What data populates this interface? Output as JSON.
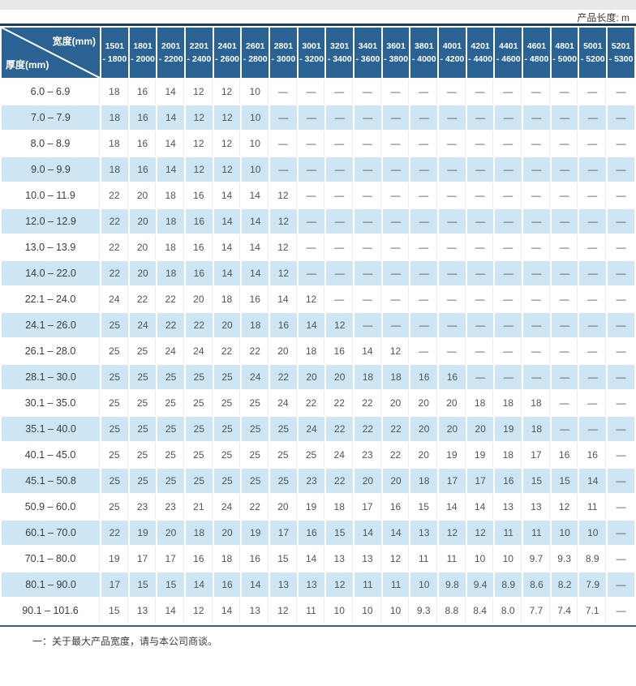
{
  "page": {
    "unit_note": "产品长度: m",
    "footnote": "一：关于最大产品宽度，请与本公司商谈。"
  },
  "colors": {
    "header_bg": "#2b6294",
    "header_top_border": "#1b3a5c",
    "alt_row_bg": "#cee5f3",
    "top_strip": "#e9e9e9",
    "divider_line": "#2f6496",
    "data_text": "#4b555f"
  },
  "chart_data": {
    "type": "table",
    "title": "最大产品长度表 (产品长度: m)",
    "corner": {
      "top_label": "宽度(mm)",
      "left_label": "厚度(mm)"
    },
    "columns": [
      [
        "1501",
        "- 1800"
      ],
      [
        "1801",
        "- 2000"
      ],
      [
        "2001",
        "- 2200"
      ],
      [
        "2201",
        "- 2400"
      ],
      [
        "2401",
        "- 2600"
      ],
      [
        "2601",
        "- 2800"
      ],
      [
        "2801",
        "- 3000"
      ],
      [
        "3001",
        "- 3200"
      ],
      [
        "3201",
        "- 3400"
      ],
      [
        "3401",
        "- 3600"
      ],
      [
        "3601",
        "- 3800"
      ],
      [
        "3801",
        "- 4000"
      ],
      [
        "4001",
        "- 4200"
      ],
      [
        "4201",
        "- 4400"
      ],
      [
        "4401",
        "- 4600"
      ],
      [
        "4601",
        "- 4800"
      ],
      [
        "4801",
        "- 5000"
      ],
      [
        "5001",
        "- 5200"
      ],
      [
        "5201",
        "- 5300"
      ]
    ],
    "rows": [
      {
        "label": "6.0 –  6.9",
        "values": [
          "18",
          "16",
          "14",
          "12",
          "12",
          "10",
          "—",
          "—",
          "—",
          "—",
          "—",
          "—",
          "—",
          "—",
          "—",
          "—",
          "—",
          "—",
          "—"
        ]
      },
      {
        "label": "7.0 –  7.9",
        "values": [
          "18",
          "16",
          "14",
          "12",
          "12",
          "10",
          "—",
          "—",
          "—",
          "—",
          "—",
          "—",
          "—",
          "—",
          "—",
          "—",
          "—",
          "—",
          "—"
        ]
      },
      {
        "label": "8.0 –  8.9",
        "values": [
          "18",
          "16",
          "14",
          "12",
          "12",
          "10",
          "—",
          "—",
          "—",
          "—",
          "—",
          "—",
          "—",
          "—",
          "—",
          "—",
          "—",
          "—",
          "—"
        ]
      },
      {
        "label": "9.0 –  9.9",
        "values": [
          "18",
          "16",
          "14",
          "12",
          "12",
          "10",
          "—",
          "—",
          "—",
          "—",
          "—",
          "—",
          "—",
          "—",
          "—",
          "—",
          "—",
          "—",
          "—"
        ]
      },
      {
        "label": "10.0 – 11.9",
        "values": [
          "22",
          "20",
          "18",
          "16",
          "14",
          "14",
          "12",
          "—",
          "—",
          "—",
          "—",
          "—",
          "—",
          "—",
          "—",
          "—",
          "—",
          "—",
          "—"
        ]
      },
      {
        "label": "12.0 – 12.9",
        "values": [
          "22",
          "20",
          "18",
          "16",
          "14",
          "14",
          "12",
          "—",
          "—",
          "—",
          "—",
          "—",
          "—",
          "—",
          "—",
          "—",
          "—",
          "—",
          "—"
        ]
      },
      {
        "label": "13.0 – 13.9",
        "values": [
          "22",
          "20",
          "18",
          "16",
          "14",
          "14",
          "12",
          "—",
          "—",
          "—",
          "—",
          "—",
          "—",
          "—",
          "—",
          "—",
          "—",
          "—",
          "—"
        ]
      },
      {
        "label": "14.0 – 22.0",
        "values": [
          "22",
          "20",
          "18",
          "16",
          "14",
          "14",
          "12",
          "—",
          "—",
          "—",
          "—",
          "—",
          "—",
          "—",
          "—",
          "—",
          "—",
          "—",
          "—"
        ]
      },
      {
        "label": "22.1 – 24.0",
        "values": [
          "24",
          "22",
          "22",
          "20",
          "18",
          "16",
          "14",
          "12",
          "—",
          "—",
          "—",
          "—",
          "—",
          "—",
          "—",
          "—",
          "—",
          "—",
          "—"
        ]
      },
      {
        "label": "24.1 – 26.0",
        "values": [
          "25",
          "24",
          "22",
          "22",
          "20",
          "18",
          "16",
          "14",
          "12",
          "—",
          "—",
          "—",
          "—",
          "—",
          "—",
          "—",
          "—",
          "—",
          "—"
        ]
      },
      {
        "label": "26.1 – 28.0",
        "values": [
          "25",
          "25",
          "24",
          "24",
          "22",
          "22",
          "20",
          "18",
          "16",
          "14",
          "12",
          "—",
          "—",
          "—",
          "—",
          "—",
          "—",
          "—",
          "—"
        ]
      },
      {
        "label": "28.1 – 30.0",
        "values": [
          "25",
          "25",
          "25",
          "25",
          "25",
          "24",
          "22",
          "20",
          "20",
          "18",
          "18",
          "16",
          "16",
          "—",
          "—",
          "—",
          "—",
          "—",
          "—"
        ]
      },
      {
        "label": "30.1 – 35.0",
        "values": [
          "25",
          "25",
          "25",
          "25",
          "25",
          "25",
          "24",
          "22",
          "22",
          "22",
          "20",
          "20",
          "20",
          "18",
          "18",
          "18",
          "—",
          "—",
          "—"
        ]
      },
      {
        "label": "35.1 – 40.0",
        "values": [
          "25",
          "25",
          "25",
          "25",
          "25",
          "25",
          "25",
          "24",
          "22",
          "22",
          "22",
          "20",
          "20",
          "20",
          "19",
          "18",
          "—",
          "—",
          "—"
        ]
      },
      {
        "label": "40.1 – 45.0",
        "values": [
          "25",
          "25",
          "25",
          "25",
          "25",
          "25",
          "25",
          "25",
          "24",
          "23",
          "22",
          "20",
          "19",
          "19",
          "18",
          "17",
          "16",
          "16",
          "—"
        ]
      },
      {
        "label": "45.1 – 50.8",
        "values": [
          "25",
          "25",
          "25",
          "25",
          "25",
          "25",
          "25",
          "23",
          "22",
          "20",
          "20",
          "18",
          "17",
          "17",
          "16",
          "15",
          "15",
          "14",
          "—"
        ]
      },
      {
        "label": "50.9 – 60.0",
        "values": [
          "25",
          "23",
          "23",
          "21",
          "24",
          "22",
          "20",
          "19",
          "18",
          "17",
          "16",
          "15",
          "14",
          "14",
          "13",
          "13",
          "12",
          "11",
          "—"
        ]
      },
      {
        "label": "60.1 – 70.0",
        "values": [
          "22",
          "19",
          "20",
          "18",
          "20",
          "19",
          "17",
          "16",
          "15",
          "14",
          "14",
          "13",
          "12",
          "12",
          "11",
          "11",
          "10",
          "10",
          "—"
        ]
      },
      {
        "label": "70.1 – 80.0",
        "values": [
          "19",
          "17",
          "17",
          "16",
          "18",
          "16",
          "15",
          "14",
          "13",
          "13",
          "12",
          "11",
          "11",
          "10",
          "10",
          "9.7",
          "9.3",
          "8.9",
          "—"
        ]
      },
      {
        "label": "80.1 – 90.0",
        "values": [
          "17",
          "15",
          "15",
          "14",
          "16",
          "14",
          "13",
          "13",
          "12",
          "11",
          "11",
          "10",
          "9.8",
          "9.4",
          "8.9",
          "8.6",
          "8.2",
          "7.9",
          "—"
        ]
      },
      {
        "label": "90.1 – 101.6",
        "values": [
          "15",
          "13",
          "14",
          "12",
          "14",
          "13",
          "12",
          "11",
          "10",
          "10",
          "10",
          "9.3",
          "8.8",
          "8.4",
          "8.0",
          "7.7",
          "7.4",
          "7.1",
          "—"
        ]
      }
    ],
    "footnote": "一：关于最大产品宽度，请与本公司商谈。"
  }
}
